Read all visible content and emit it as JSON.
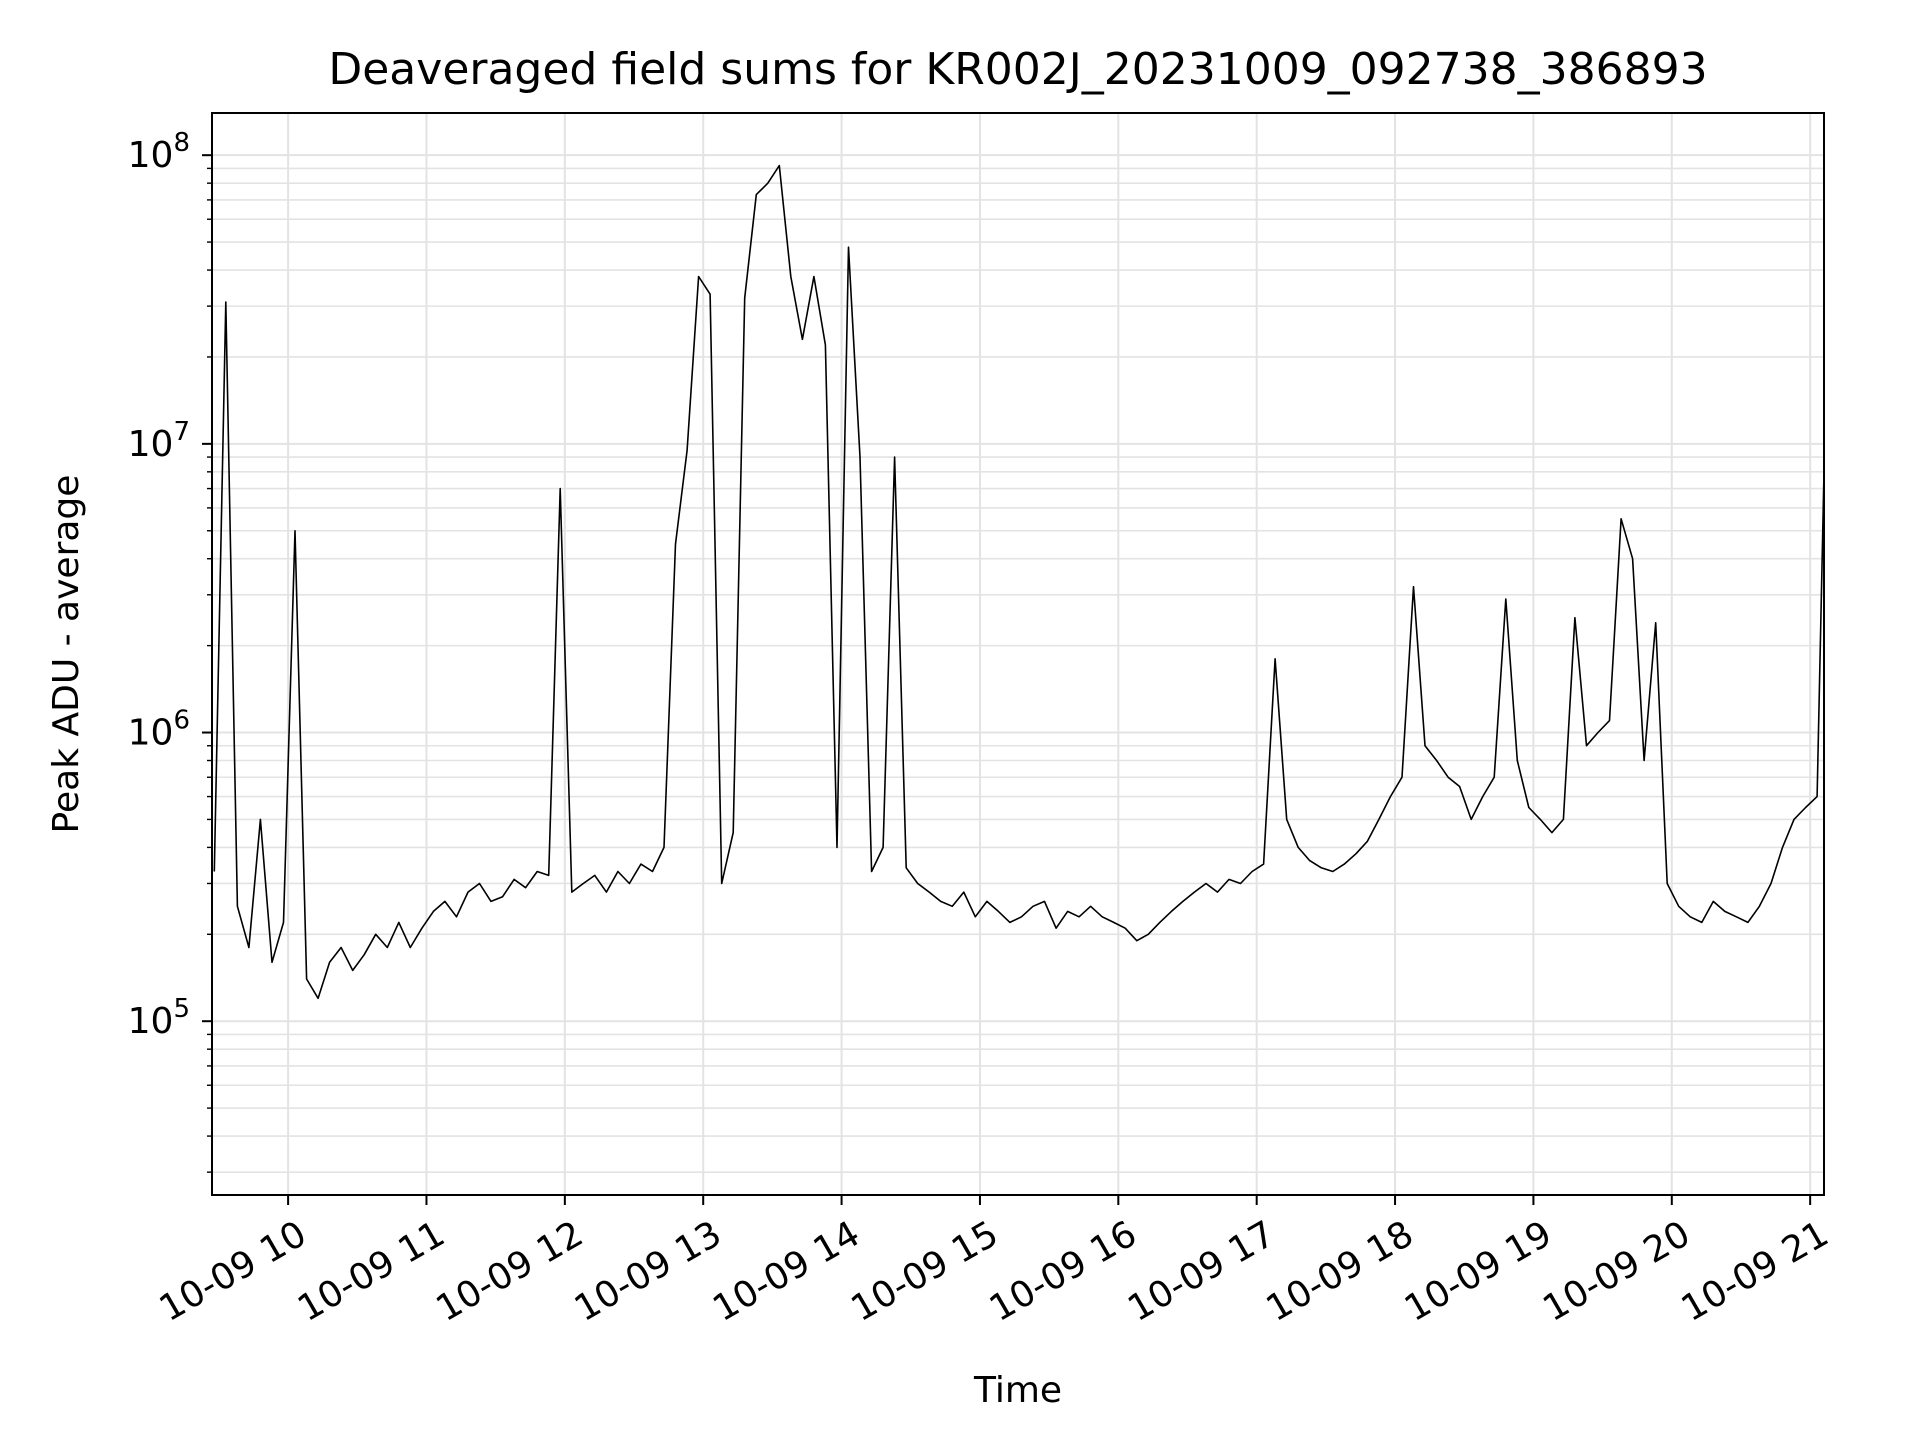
{
  "chart_data": {
    "type": "line",
    "title": "Deaveraged field sums for KR002J_20231009_092738_386893",
    "xlabel": "Time",
    "ylabel": "Peak ADU - average",
    "yscale": "log",
    "ylim": [
      25000,
      140000000
    ],
    "xlim": [
      "10-09 09:27",
      "10-09 21:06"
    ],
    "grid": true,
    "line_color": "#000000",
    "x_ticks": [
      {
        "value": "10-09 10:00",
        "label": "10-09 10"
      },
      {
        "value": "10-09 11:00",
        "label": "10-09 11"
      },
      {
        "value": "10-09 12:00",
        "label": "10-09 12"
      },
      {
        "value": "10-09 13:00",
        "label": "10-09 13"
      },
      {
        "value": "10-09 14:00",
        "label": "10-09 14"
      },
      {
        "value": "10-09 15:00",
        "label": "10-09 15"
      },
      {
        "value": "10-09 16:00",
        "label": "10-09 16"
      },
      {
        "value": "10-09 17:00",
        "label": "10-09 17"
      },
      {
        "value": "10-09 18:00",
        "label": "10-09 18"
      },
      {
        "value": "10-09 19:00",
        "label": "10-09 19"
      },
      {
        "value": "10-09 20:00",
        "label": "10-09 20"
      },
      {
        "value": "10-09 21:00",
        "label": "10-09 21"
      }
    ],
    "y_ticks": [
      {
        "value": 100000,
        "base": "10",
        "exp": "5"
      },
      {
        "value": 1000000,
        "base": "10",
        "exp": "6"
      },
      {
        "value": 10000000,
        "base": "10",
        "exp": "7"
      },
      {
        "value": 100000000,
        "base": "10",
        "exp": "8"
      }
    ],
    "series": [
      {
        "x": [
          "10-09 09:28",
          "10-09 09:33",
          "10-09 09:38",
          "10-09 09:43",
          "10-09 09:48",
          "10-09 09:53",
          "10-09 09:58",
          "10-09 10:03",
          "10-09 10:08",
          "10-09 10:13",
          "10-09 10:18",
          "10-09 10:23",
          "10-09 10:28",
          "10-09 10:33",
          "10-09 10:38",
          "10-09 10:43",
          "10-09 10:48",
          "10-09 10:53",
          "10-09 10:58",
          "10-09 11:03",
          "10-09 11:08",
          "10-09 11:13",
          "10-09 11:18",
          "10-09 11:23",
          "10-09 11:28",
          "10-09 11:33",
          "10-09 11:38",
          "10-09 11:43",
          "10-09 11:48",
          "10-09 11:53",
          "10-09 11:58",
          "10-09 12:03",
          "10-09 12:08",
          "10-09 12:13",
          "10-09 12:18",
          "10-09 12:23",
          "10-09 12:28",
          "10-09 12:33",
          "10-09 12:38",
          "10-09 12:43",
          "10-09 12:48",
          "10-09 12:53",
          "10-09 12:58",
          "10-09 13:03",
          "10-09 13:08",
          "10-09 13:13",
          "10-09 13:18",
          "10-09 13:23",
          "10-09 13:28",
          "10-09 13:33",
          "10-09 13:38",
          "10-09 13:43",
          "10-09 13:48",
          "10-09 13:53",
          "10-09 13:58",
          "10-09 14:03",
          "10-09 14:08",
          "10-09 14:13",
          "10-09 14:18",
          "10-09 14:23",
          "10-09 14:28",
          "10-09 14:33",
          "10-09 14:38",
          "10-09 14:43",
          "10-09 14:48",
          "10-09 14:53",
          "10-09 14:58",
          "10-09 15:03",
          "10-09 15:08",
          "10-09 15:13",
          "10-09 15:18",
          "10-09 15:23",
          "10-09 15:28",
          "10-09 15:33",
          "10-09 15:38",
          "10-09 15:43",
          "10-09 15:48",
          "10-09 15:53",
          "10-09 15:58",
          "10-09 16:03",
          "10-09 16:08",
          "10-09 16:13",
          "10-09 16:18",
          "10-09 16:23",
          "10-09 16:28",
          "10-09 16:33",
          "10-09 16:38",
          "10-09 16:43",
          "10-09 16:48",
          "10-09 16:53",
          "10-09 16:58",
          "10-09 17:03",
          "10-09 17:08",
          "10-09 17:13",
          "10-09 17:18",
          "10-09 17:23",
          "10-09 17:28",
          "10-09 17:33",
          "10-09 17:38",
          "10-09 17:43",
          "10-09 17:48",
          "10-09 17:53",
          "10-09 17:58",
          "10-09 18:03",
          "10-09 18:08",
          "10-09 18:13",
          "10-09 18:18",
          "10-09 18:23",
          "10-09 18:28",
          "10-09 18:33",
          "10-09 18:38",
          "10-09 18:43",
          "10-09 18:48",
          "10-09 18:53",
          "10-09 18:58",
          "10-09 19:03",
          "10-09 19:08",
          "10-09 19:13",
          "10-09 19:18",
          "10-09 19:23",
          "10-09 19:28",
          "10-09 19:33",
          "10-09 19:38",
          "10-09 19:43",
          "10-09 19:48",
          "10-09 19:53",
          "10-09 19:58",
          "10-09 20:03",
          "10-09 20:08",
          "10-09 20:13",
          "10-09 20:18",
          "10-09 20:23",
          "10-09 20:28",
          "10-09 20:33",
          "10-09 20:38",
          "10-09 20:43",
          "10-09 20:48",
          "10-09 20:53",
          "10-09 20:58",
          "10-09 21:03",
          "10-09 21:06"
        ],
        "values": [
          330000,
          31000000,
          250000,
          180000,
          500000,
          160000,
          220000,
          5000000,
          140000,
          120000,
          160000,
          180000,
          150000,
          170000,
          200000,
          180000,
          220000,
          180000,
          210000,
          240000,
          260000,
          230000,
          280000,
          300000,
          260000,
          270000,
          310000,
          290000,
          330000,
          320000,
          7000000,
          280000,
          300000,
          320000,
          280000,
          330000,
          300000,
          350000,
          330000,
          400000,
          4500000,
          9500000,
          38000000,
          33000000,
          300000,
          450000,
          32000000,
          73000000,
          80000000,
          92000000,
          38000000,
          23000000,
          38000000,
          22000000,
          400000,
          48000000,
          9000000,
          330000,
          400000,
          9000000,
          340000,
          300000,
          280000,
          260000,
          250000,
          280000,
          230000,
          260000,
          240000,
          220000,
          230000,
          250000,
          260000,
          210000,
          240000,
          230000,
          250000,
          230000,
          220000,
          210000,
          190000,
          200000,
          220000,
          240000,
          260000,
          280000,
          300000,
          280000,
          310000,
          300000,
          330000,
          350000,
          1800000,
          500000,
          400000,
          360000,
          340000,
          330000,
          350000,
          380000,
          420000,
          500000,
          600000,
          700000,
          3200000,
          900000,
          800000,
          700000,
          650000,
          500000,
          600000,
          700000,
          2900000,
          800000,
          550000,
          500000,
          450000,
          500000,
          2500000,
          900000,
          1000000,
          1100000,
          5500000,
          4000000,
          800000,
          2400000,
          300000,
          250000,
          230000,
          220000,
          260000,
          240000,
          230000,
          220000,
          250000,
          300000,
          400000,
          500000,
          550000,
          600000,
          8000000
        ]
      }
    ]
  }
}
